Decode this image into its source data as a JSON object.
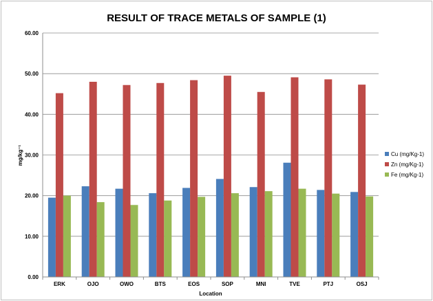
{
  "chart_data": {
    "type": "bar",
    "title": "RESULT OF TRACE METALS OF SAMPLE (1)",
    "xlabel": "Location",
    "ylabel": "mg/kg⁻¹",
    "ylim": [
      0,
      60
    ],
    "yticks": [
      "0.00",
      "10.00",
      "20.00",
      "30.00",
      "40.00",
      "50.00",
      "60.00"
    ],
    "grid": true,
    "legend_position": "right",
    "categories": [
      "ERK",
      "OJO",
      "OWO",
      "BTS",
      "EOS",
      "SOP",
      "MNI",
      "TVE",
      "PTJ",
      "OSJ"
    ],
    "series": [
      {
        "name": "Cu (mg/Kg-1)",
        "color": "#4a7ebb",
        "values": [
          19.5,
          22.3,
          21.7,
          20.6,
          21.9,
          24.1,
          22.1,
          28.1,
          21.4,
          20.9
        ]
      },
      {
        "name": "Zn (mg/Kg-1)",
        "color": "#be4b48",
        "values": [
          45.2,
          48.0,
          47.2,
          47.7,
          48.4,
          49.5,
          45.5,
          49.1,
          48.6,
          47.3
        ]
      },
      {
        "name": "Fe (mg/Kg-1)",
        "color": "#98b954",
        "values": [
          20.0,
          18.4,
          17.7,
          18.8,
          19.7,
          20.6,
          21.1,
          21.7,
          20.5,
          19.8
        ]
      }
    ]
  }
}
